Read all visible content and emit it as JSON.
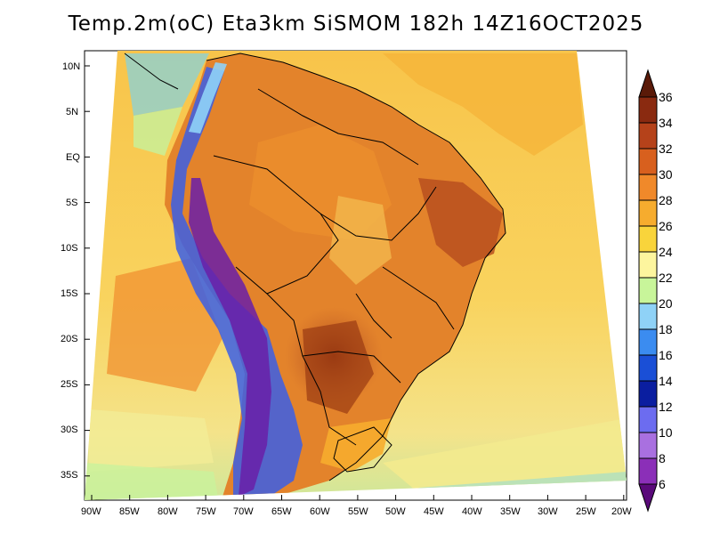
{
  "title": "Temp.2m(oC) Eta3km SiSMOM 182h 14Z16OCT2025",
  "lat_labels": [
    "10N",
    "5N",
    "EQ",
    "5S",
    "10S",
    "15S",
    "20S",
    "25S",
    "30S",
    "35S"
  ],
  "lon_labels": [
    "90W",
    "85W",
    "80W",
    "75W",
    "70W",
    "65W",
    "60W",
    "55W",
    "50W",
    "45W",
    "40W",
    "35W",
    "30W",
    "25W",
    "20W"
  ],
  "colorbar": {
    "labels": [
      "6",
      "8",
      "10",
      "12",
      "14",
      "16",
      "18",
      "20",
      "22",
      "24",
      "26",
      "28",
      "30",
      "32",
      "34",
      "36"
    ],
    "colors": [
      "#5a0a7a",
      "#8b2fb8",
      "#a970e0",
      "#6c6cf0",
      "#0a1ea0",
      "#1a4fd6",
      "#3b8cf0",
      "#8fd2f7",
      "#c8f59a",
      "#fdf59e",
      "#f9d43b",
      "#f6ac2e",
      "#f0892a",
      "#d8601e",
      "#b5421a",
      "#8a2a10",
      "#5a1a08"
    ]
  },
  "colors": {
    "ocean_warm": "#f9c847",
    "ocean_cool": "#f9d76a",
    "land_hot": "#e3832b",
    "land_vhot": "#b9501e",
    "andes_cold": "#3b5fe6",
    "andes_vcold": "#6a1fa8"
  }
}
